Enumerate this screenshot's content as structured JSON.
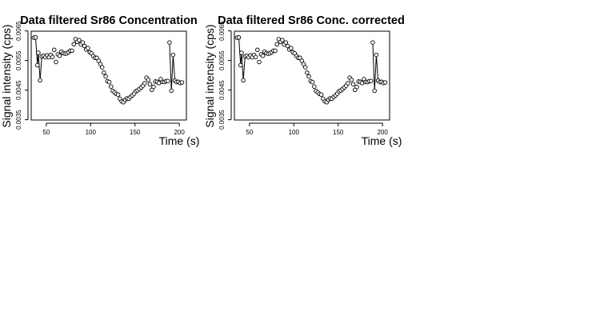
{
  "chart_data": [
    {
      "type": "scatter",
      "title": "Data filtered Sr86 Concentration",
      "xlabel": "Time (s)",
      "ylabel": "Signal intensity (cps)",
      "xlim": [
        33,
        208
      ],
      "ylim": [
        0.00349,
        0.00649
      ],
      "xticks": [
        50,
        100,
        150,
        200
      ],
      "yticks": [
        0.0035,
        0.0045,
        0.0055,
        0.0065
      ],
      "ytick_labels": [
        "0.0035",
        "0.0045",
        "0.0055",
        "0.0065"
      ],
      "grid": false,
      "line_segments": [
        [
          36,
          48
        ],
        [
          188,
          197
        ]
      ],
      "x": [
        36,
        38,
        40,
        41,
        43,
        45,
        47,
        49,
        51,
        53,
        55,
        57,
        59,
        61,
        63,
        65,
        67,
        69,
        71,
        73,
        75,
        77,
        79,
        81,
        83,
        85,
        87,
        89,
        91,
        93,
        95,
        97,
        99,
        101,
        103,
        105,
        107,
        109,
        111,
        113,
        115,
        117,
        119,
        121,
        123,
        125,
        127,
        129,
        131,
        133,
        135,
        137,
        139,
        141,
        143,
        145,
        147,
        149,
        151,
        153,
        155,
        157,
        159,
        161,
        163,
        165,
        167,
        169,
        171,
        173,
        175,
        177,
        179,
        181,
        183,
        185,
        187,
        189,
        191,
        193,
        195,
        197,
        199,
        201,
        203
      ],
      "y": [
        0.00627,
        0.00628,
        0.00534,
        0.00576,
        0.00483,
        0.00564,
        0.00566,
        0.00561,
        0.00567,
        0.00561,
        0.00569,
        0.00562,
        0.00586,
        0.00545,
        0.00571,
        0.00566,
        0.0058,
        0.00575,
        0.00573,
        0.00574,
        0.00578,
        0.00583,
        0.00583,
        0.00605,
        0.00622,
        0.00613,
        0.00619,
        0.00604,
        0.00611,
        0.00599,
        0.00587,
        0.00592,
        0.00578,
        0.00574,
        0.00565,
        0.00559,
        0.00559,
        0.00549,
        0.00538,
        0.00527,
        0.00509,
        0.00496,
        0.0048,
        0.00477,
        0.00462,
        0.00447,
        0.00442,
        0.00437,
        0.00435,
        0.00421,
        0.00412,
        0.00409,
        0.00417,
        0.00422,
        0.00421,
        0.00427,
        0.00432,
        0.00438,
        0.00446,
        0.00449,
        0.00454,
        0.00459,
        0.00465,
        0.00473,
        0.00492,
        0.00485,
        0.0047,
        0.00451,
        0.00461,
        0.00479,
        0.00478,
        0.00474,
        0.00487,
        0.00478,
        0.00477,
        0.0048,
        0.00481,
        0.00611,
        0.00448,
        0.00569,
        0.00482,
        0.00477,
        0.00478,
        0.00474,
        0.00476
      ]
    },
    {
      "type": "scatter",
      "title": "Data filtered Sr86 Conc. corrected",
      "xlabel": "Time (s)",
      "ylabel": "Signal intensity (cps)",
      "xlim": [
        33,
        208
      ],
      "ylim": [
        0.00349,
        0.00649
      ],
      "xticks": [
        50,
        100,
        150,
        200
      ],
      "yticks": [
        0.0035,
        0.0045,
        0.0055,
        0.0065
      ],
      "ytick_labels": [
        "0.0035",
        "0.0045",
        "0.0055",
        "0.0065"
      ],
      "grid": false,
      "line_segments": [
        [
          36,
          48
        ],
        [
          188,
          197
        ]
      ],
      "x": [
        36,
        38,
        40,
        41,
        43,
        45,
        47,
        49,
        51,
        53,
        55,
        57,
        59,
        61,
        63,
        65,
        67,
        69,
        71,
        73,
        75,
        77,
        79,
        81,
        83,
        85,
        87,
        89,
        91,
        93,
        95,
        97,
        99,
        101,
        103,
        105,
        107,
        109,
        111,
        113,
        115,
        117,
        119,
        121,
        123,
        125,
        127,
        129,
        131,
        133,
        135,
        137,
        139,
        141,
        143,
        145,
        147,
        149,
        151,
        153,
        155,
        157,
        159,
        161,
        163,
        165,
        167,
        169,
        171,
        173,
        175,
        177,
        179,
        181,
        183,
        185,
        187,
        189,
        191,
        193,
        195,
        197,
        199,
        201,
        203
      ],
      "y": [
        0.00627,
        0.00628,
        0.00534,
        0.00576,
        0.00483,
        0.00564,
        0.00566,
        0.00561,
        0.00567,
        0.00561,
        0.00569,
        0.00562,
        0.00586,
        0.00545,
        0.00571,
        0.00566,
        0.0058,
        0.00575,
        0.00573,
        0.00574,
        0.00578,
        0.00583,
        0.00583,
        0.00605,
        0.00622,
        0.00613,
        0.00619,
        0.00604,
        0.00611,
        0.00599,
        0.00587,
        0.00592,
        0.00578,
        0.00574,
        0.00565,
        0.00559,
        0.00559,
        0.00549,
        0.00538,
        0.00527,
        0.00509,
        0.00496,
        0.0048,
        0.00477,
        0.00462,
        0.00447,
        0.00442,
        0.00437,
        0.00435,
        0.00421,
        0.00412,
        0.00409,
        0.00417,
        0.00422,
        0.00421,
        0.00427,
        0.00432,
        0.00438,
        0.00446,
        0.00449,
        0.00454,
        0.00459,
        0.00465,
        0.00473,
        0.00492,
        0.00485,
        0.0047,
        0.00451,
        0.00461,
        0.00479,
        0.00478,
        0.00474,
        0.00487,
        0.00478,
        0.00477,
        0.0048,
        0.00481,
        0.00611,
        0.00448,
        0.00569,
        0.00482,
        0.00477,
        0.00478,
        0.00474,
        0.00476
      ]
    }
  ]
}
